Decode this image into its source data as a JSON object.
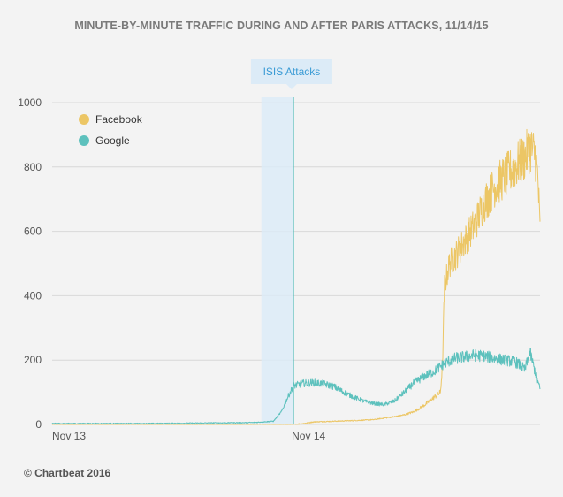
{
  "title": "MINUTE-BY-MINUTE TRAFFIC DURING AND AFTER PARIS ATTACKS, 11/14/15",
  "credit": "© Chartbeat 2016",
  "chart_data": {
    "type": "line",
    "title": "MINUTE-BY-MINUTE TRAFFIC DURING AND AFTER PARIS ATTACKS, 11/14/15",
    "x_axis": {
      "type": "time",
      "ticks": [
        "Nov 13",
        "Nov 14"
      ],
      "range_hours": [
        0,
        48.5
      ]
    },
    "y_axis": {
      "range": [
        0,
        1000
      ],
      "ticks": [
        0,
        200,
        400,
        600,
        800,
        1000
      ]
    },
    "grid": "horizontal",
    "legend_position": "top-left",
    "annotation": {
      "label": "ISIS Attacks",
      "start_hour": 20.8,
      "end_hour": 24.0
    },
    "series": [
      {
        "name": "Facebook",
        "color": "#ecc665",
        "points": [
          [
            0,
            0
          ],
          [
            24,
            0
          ],
          [
            25,
            3
          ],
          [
            26,
            8
          ],
          [
            28,
            10
          ],
          [
            30,
            12
          ],
          [
            32,
            15
          ],
          [
            33,
            20
          ],
          [
            34,
            24
          ],
          [
            35,
            30
          ],
          [
            36,
            40
          ],
          [
            37,
            60
          ],
          [
            38,
            85
          ],
          [
            38.6,
            100
          ],
          [
            38.8,
            180
          ],
          [
            39.0,
            430
          ],
          [
            39.5,
            500
          ],
          [
            40,
            520
          ],
          [
            41,
            570
          ],
          [
            42,
            620
          ],
          [
            43,
            690
          ],
          [
            44,
            740
          ],
          [
            45,
            770
          ],
          [
            46,
            800
          ],
          [
            47,
            830
          ],
          [
            47.5,
            860
          ],
          [
            48,
            840
          ],
          [
            48.3,
            760
          ],
          [
            48.5,
            600
          ]
        ]
      },
      {
        "name": "Google",
        "color": "#5dc1bd",
        "points": [
          [
            0,
            3
          ],
          [
            10,
            3
          ],
          [
            20,
            6
          ],
          [
            22,
            10
          ],
          [
            22.8,
            40
          ],
          [
            23.5,
            90
          ],
          [
            24,
            120
          ],
          [
            25,
            128
          ],
          [
            26,
            130
          ],
          [
            27,
            126
          ],
          [
            28,
            118
          ],
          [
            29,
            100
          ],
          [
            30,
            85
          ],
          [
            31,
            72
          ],
          [
            32,
            65
          ],
          [
            33,
            62
          ],
          [
            34,
            72
          ],
          [
            35,
            100
          ],
          [
            36,
            130
          ],
          [
            37,
            150
          ],
          [
            38,
            165
          ],
          [
            39,
            190
          ],
          [
            40,
            205
          ],
          [
            41,
            210
          ],
          [
            42,
            215
          ],
          [
            43,
            212
          ],
          [
            44,
            205
          ],
          [
            45,
            200
          ],
          [
            46,
            195
          ],
          [
            46.5,
            185
          ],
          [
            47,
            170
          ],
          [
            47.5,
            225
          ],
          [
            48,
            165
          ],
          [
            48.5,
            110
          ]
        ]
      }
    ]
  }
}
